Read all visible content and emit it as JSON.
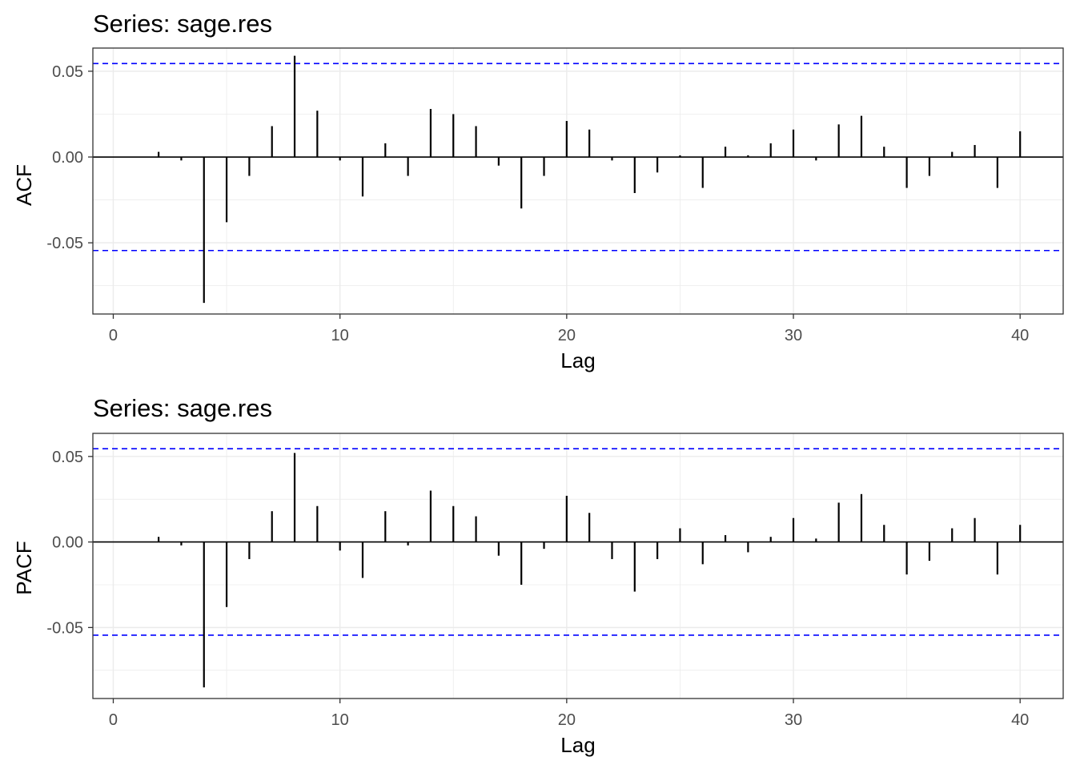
{
  "chart_data": [
    {
      "type": "bar",
      "title": "Series: sage.res",
      "xlabel": "Lag",
      "ylabel": "ACF",
      "xlim": [
        -0.9,
        41.9
      ],
      "ylim": [
        -0.0915,
        0.0635
      ],
      "x_ticks": [
        0,
        10,
        20,
        30,
        40
      ],
      "x_tick_labels": [
        "0",
        "10",
        "20",
        "30",
        "40"
      ],
      "y_ticks": [
        -0.05,
        0.0,
        0.05
      ],
      "y_tick_labels": [
        "-0.05",
        "0.00",
        "0.05"
      ],
      "grid": true,
      "confidence_limit": 0.0545,
      "x": [
        1,
        2,
        3,
        4,
        5,
        6,
        7,
        8,
        9,
        10,
        11,
        12,
        13,
        14,
        15,
        16,
        17,
        18,
        19,
        20,
        21,
        22,
        23,
        24,
        25,
        26,
        27,
        28,
        29,
        30,
        31,
        32,
        33,
        34,
        35,
        36,
        37,
        38,
        39,
        40
      ],
      "values": [
        0.0,
        0.003,
        -0.002,
        -0.085,
        -0.038,
        -0.011,
        0.018,
        0.059,
        0.027,
        -0.002,
        -0.023,
        0.008,
        -0.011,
        0.028,
        0.025,
        0.018,
        -0.005,
        -0.03,
        -0.011,
        0.021,
        0.016,
        -0.002,
        -0.021,
        -0.009,
        0.001,
        -0.018,
        0.006,
        0.001,
        0.008,
        0.016,
        -0.002,
        0.019,
        0.024,
        0.006,
        -0.018,
        -0.011,
        0.003,
        0.007,
        -0.018,
        0.015
      ]
    },
    {
      "type": "bar",
      "title": "Series: sage.res",
      "xlabel": "Lag",
      "ylabel": "PACF",
      "xlim": [
        -0.9,
        41.9
      ],
      "ylim": [
        -0.0915,
        0.0635
      ],
      "x_ticks": [
        0,
        10,
        20,
        30,
        40
      ],
      "x_tick_labels": [
        "0",
        "10",
        "20",
        "30",
        "40"
      ],
      "y_ticks": [
        -0.05,
        0.0,
        0.05
      ],
      "y_tick_labels": [
        "-0.05",
        "0.00",
        "0.05"
      ],
      "grid": true,
      "confidence_limit": 0.0545,
      "x": [
        1,
        2,
        3,
        4,
        5,
        6,
        7,
        8,
        9,
        10,
        11,
        12,
        13,
        14,
        15,
        16,
        17,
        18,
        19,
        20,
        21,
        22,
        23,
        24,
        25,
        26,
        27,
        28,
        29,
        30,
        31,
        32,
        33,
        34,
        35,
        36,
        37,
        38,
        39,
        40
      ],
      "values": [
        0.0,
        0.003,
        -0.002,
        -0.085,
        -0.038,
        -0.01,
        0.018,
        0.052,
        0.021,
        -0.005,
        -0.021,
        0.018,
        -0.002,
        0.03,
        0.021,
        0.015,
        -0.008,
        -0.025,
        -0.004,
        0.027,
        0.017,
        -0.01,
        -0.029,
        -0.01,
        0.008,
        -0.013,
        0.004,
        -0.006,
        0.003,
        0.014,
        0.002,
        0.023,
        0.028,
        0.01,
        -0.019,
        -0.011,
        0.008,
        0.014,
        -0.019,
        0.01
      ]
    }
  ]
}
